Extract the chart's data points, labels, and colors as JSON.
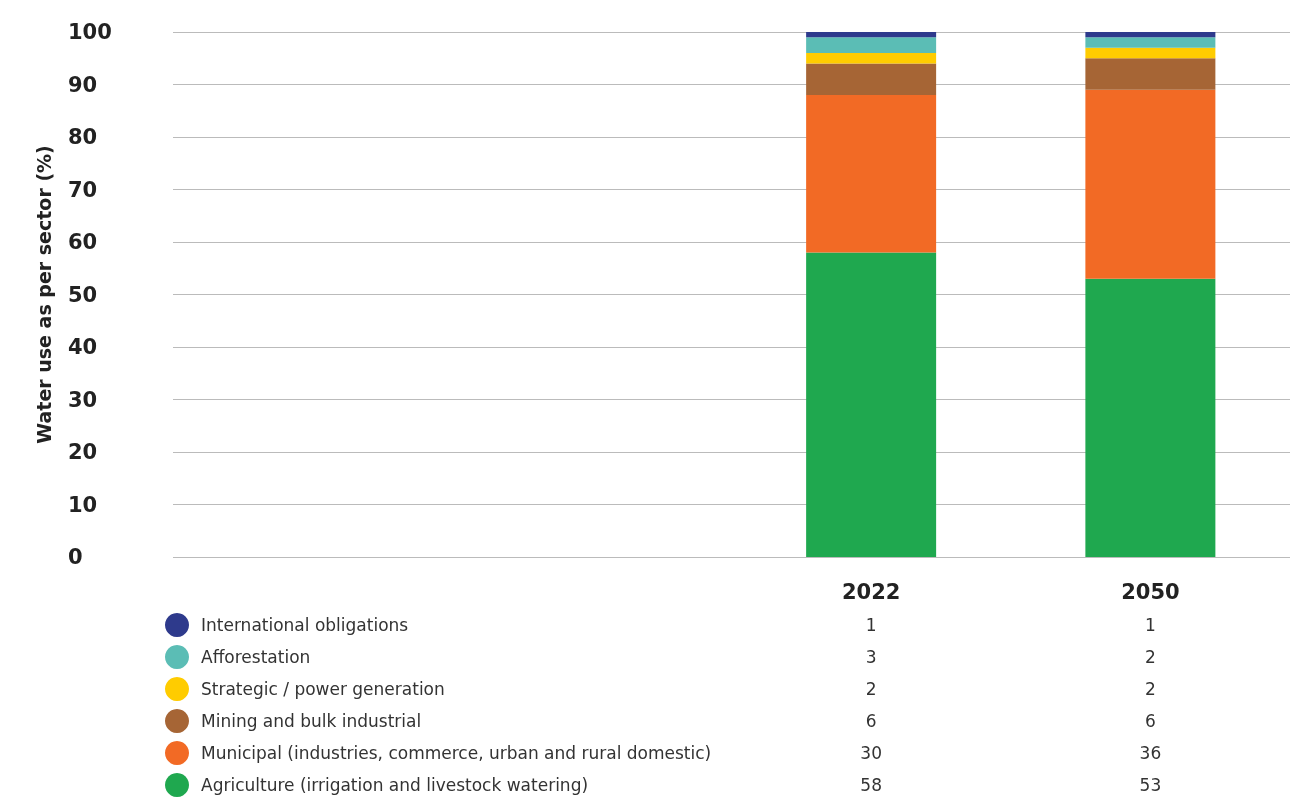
{
  "chart_data": {
    "type": "bar",
    "stacked": true,
    "ylabel": "Water use as per sector (%)",
    "categories": [
      null,
      null,
      "2022",
      "2050"
    ],
    "series": [
      {
        "name": "Agriculture (irrigation and livestock watering)",
        "color": "#1fa84f",
        "values": [
          null,
          null,
          58,
          53
        ]
      },
      {
        "name": "Municipal (industries, commerce, urban and rural domestic)",
        "color": "#f26a25",
        "values": [
          null,
          null,
          30,
          36
        ]
      },
      {
        "name": "Mining and bulk industrial",
        "color": "#a66535",
        "values": [
          null,
          null,
          6,
          6
        ]
      },
      {
        "name": "Strategic / power generation",
        "color": "#ffcc00",
        "values": [
          null,
          null,
          2,
          2
        ]
      },
      {
        "name": "Afforestation",
        "color": "#5bbdb5",
        "values": [
          null,
          null,
          3,
          2
        ]
      },
      {
        "name": "International obligations",
        "color": "#2e3a8c",
        "values": [
          null,
          null,
          1,
          1
        ]
      }
    ],
    "ylim": [
      0,
      100
    ],
    "yticks": [
      0,
      10,
      20,
      30,
      40,
      50,
      60,
      70,
      80,
      90,
      100
    ],
    "grid": "y",
    "legend": "bottom",
    "data_labels": true
  }
}
